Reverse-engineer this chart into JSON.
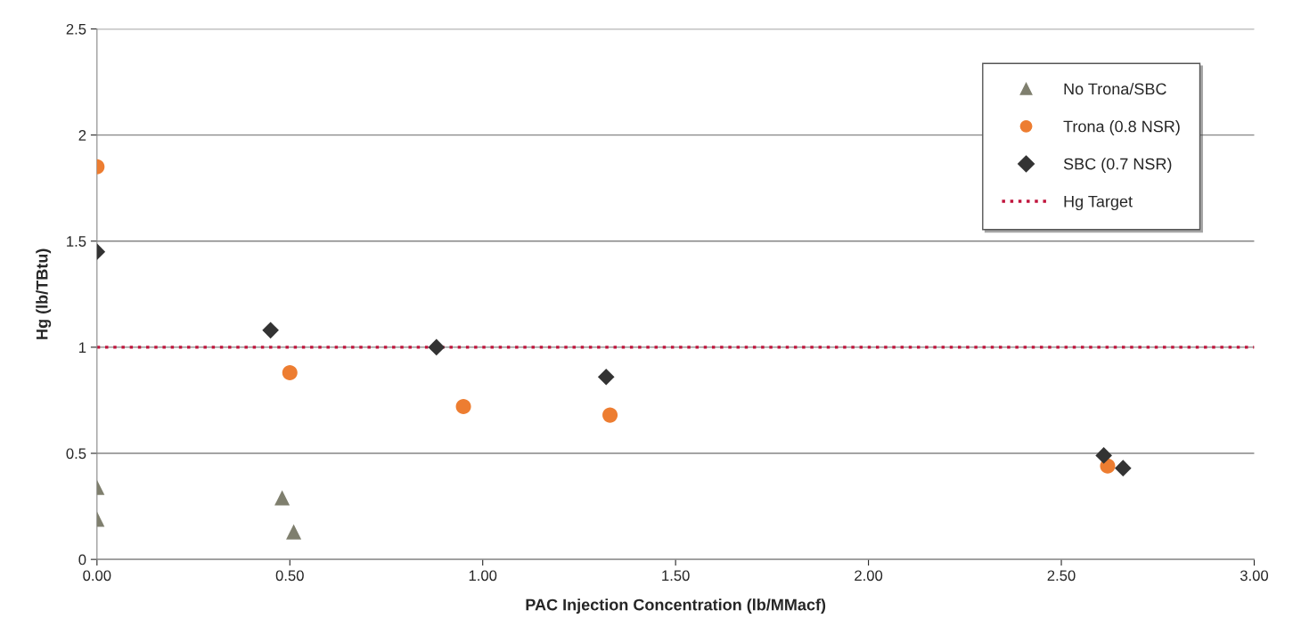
{
  "chart_data": {
    "type": "scatter",
    "xlabel": "PAC Injection Concentration (lb/MMacf)",
    "ylabel": "Hg (lb/TBtu)",
    "series": [
      {
        "name": "No Trona/SBC",
        "color": "#7f7f6e",
        "marker": "triangle",
        "x": [
          0.0,
          0.0,
          0.48,
          0.51
        ],
        "values": [
          0.34,
          0.19,
          0.29,
          0.13
        ]
      },
      {
        "name": "Trona (0.8 NSR)",
        "color": "#ed7d31",
        "marker": "circle",
        "x": [
          0.0,
          0.5,
          0.95,
          1.33,
          2.62
        ],
        "values": [
          1.85,
          0.88,
          0.72,
          0.68,
          0.44
        ]
      },
      {
        "name": "SBC (0.7 NSR)",
        "color": "#333333",
        "marker": "diamond",
        "x": [
          0.0,
          0.45,
          0.88,
          1.32,
          2.61,
          2.66
        ],
        "values": [
          1.45,
          1.08,
          1.0,
          0.86,
          0.49,
          0.43
        ]
      }
    ],
    "ref_lines": [
      {
        "axis": "y",
        "value": 1,
        "label": "Hg Target",
        "color": "#c0143c",
        "line_style": "dotted"
      }
    ],
    "xlim": [
      0,
      3
    ],
    "xticks": [
      {
        "value": 0,
        "label": "0.00"
      },
      {
        "value": 0.5,
        "label": "0.50"
      },
      {
        "value": 1,
        "label": "1.00"
      },
      {
        "value": 1.5,
        "label": "1.50"
      },
      {
        "value": 2,
        "label": "2.00"
      },
      {
        "value": 2.5,
        "label": "2.50"
      },
      {
        "value": 3,
        "label": "3.00"
      }
    ],
    "ylim": [
      0,
      2.5
    ],
    "yticks": [
      0,
      0.5,
      1,
      1.5,
      2,
      2.5
    ],
    "grid": "y",
    "legend": "top right"
  }
}
